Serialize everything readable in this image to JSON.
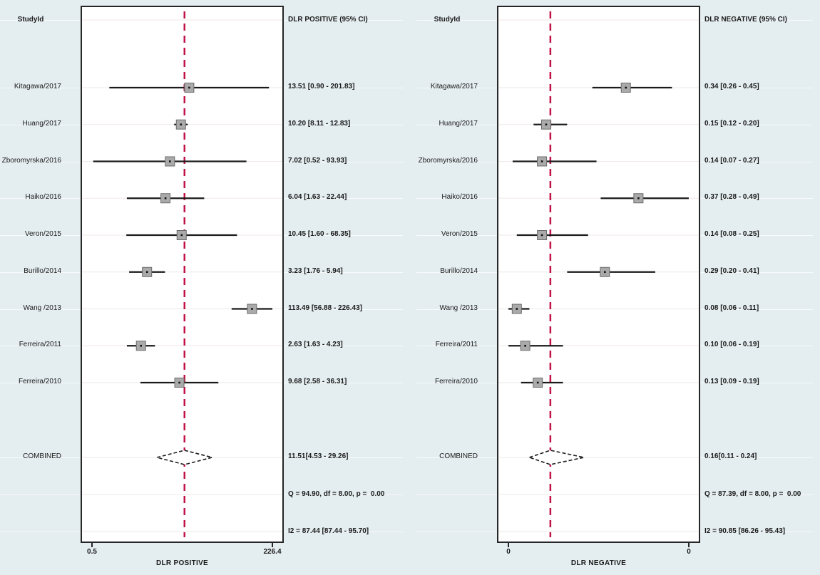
{
  "colors": {
    "background": "#e4edf0",
    "plot_background": "#ffffff",
    "plot_border": "#262626",
    "reference_line": "#c11347",
    "ci_line": "#1b1b1b",
    "marker_fill": "#aaaaaa",
    "marker_border": "#6b6b6b",
    "gridline": "#f0e7e7"
  },
  "chart_data": [
    {
      "type": "forest",
      "panel": "DLR POSITIVE",
      "study_header": "StudyId",
      "effect_header": "DLR POSITIVE (95% CI)",
      "xlabel": "DLR POSITIVE",
      "axis": {
        "scale": "log",
        "min": 0.5,
        "max": 226.4,
        "tick_labels": [
          "0.5",
          "226.4"
        ]
      },
      "studies": [
        {
          "label": "Kitagawa/2017",
          "value": 13.51,
          "ci_low": 0.9,
          "ci_high": 201.83,
          "text": "13.51 [0.90 - 201.83]"
        },
        {
          "label": "Huang/2017",
          "value": 10.2,
          "ci_low": 8.11,
          "ci_high": 12.83,
          "text": "10.20 [8.11 - 12.83]"
        },
        {
          "label": "Zboromyrska/2016",
          "value": 7.02,
          "ci_low": 0.52,
          "ci_high": 93.93,
          "text": "7.02 [0.52 - 93.93]"
        },
        {
          "label": "Haiko/2016",
          "value": 6.04,
          "ci_low": 1.63,
          "ci_high": 22.44,
          "text": "6.04 [1.63 - 22.44]"
        },
        {
          "label": "Veron/2015",
          "value": 10.45,
          "ci_low": 1.6,
          "ci_high": 68.35,
          "text": "10.45 [1.60 - 68.35]"
        },
        {
          "label": "Burillo/2014",
          "value": 3.23,
          "ci_low": 1.76,
          "ci_high": 5.94,
          "text": "3.23 [1.76 - 5.94]"
        },
        {
          "label": "Wang /2013",
          "value": 113.49,
          "ci_low": 56.88,
          "ci_high": 226.43,
          "text": "113.49 [56.88 - 226.43]"
        },
        {
          "label": "Ferreira/2011",
          "value": 2.63,
          "ci_low": 1.63,
          "ci_high": 4.23,
          "text": "2.63 [1.63 - 4.23]"
        },
        {
          "label": "Ferreira/2010",
          "value": 9.68,
          "ci_low": 2.58,
          "ci_high": 36.31,
          "text": "9.68 [2.58 - 36.31]"
        }
      ],
      "combined": {
        "label": "COMBINED",
        "value": 11.51,
        "ci_low": 4.53,
        "ci_high": 29.26,
        "text": "11.51[4.53 - 29.26]"
      },
      "q_text": "Q = 94.90, df = 8.00, p =  0.00",
      "i2_text": "I2 = 87.44 [87.44 - 95.70]"
    },
    {
      "type": "forest",
      "panel": "DLR NEGATIVE",
      "study_header": "StudyId",
      "effect_header": "DLR NEGATIVE (95% CI)",
      "xlabel": "DLR NEGATIVE",
      "axis": {
        "scale": "linear",
        "min": 0.06,
        "max": 0.49,
        "tick_labels": [
          "0",
          "0"
        ]
      },
      "studies": [
        {
          "label": "Kitagawa/2017",
          "value": 0.34,
          "ci_low": 0.26,
          "ci_high": 0.45,
          "text": "0.34 [0.26 - 0.45]"
        },
        {
          "label": "Huang/2017",
          "value": 0.15,
          "ci_low": 0.12,
          "ci_high": 0.2,
          "text": "0.15 [0.12 - 0.20]"
        },
        {
          "label": "Zboromyrska/2016",
          "value": 0.14,
          "ci_low": 0.07,
          "ci_high": 0.27,
          "text": "0.14 [0.07 - 0.27]"
        },
        {
          "label": "Haiko/2016",
          "value": 0.37,
          "ci_low": 0.28,
          "ci_high": 0.49,
          "text": "0.37 [0.28 - 0.49]"
        },
        {
          "label": "Veron/2015",
          "value": 0.14,
          "ci_low": 0.08,
          "ci_high": 0.25,
          "text": "0.14 [0.08 - 0.25]"
        },
        {
          "label": "Burillo/2014",
          "value": 0.29,
          "ci_low": 0.2,
          "ci_high": 0.41,
          "text": "0.29 [0.20 - 0.41]"
        },
        {
          "label": "Wang /2013",
          "value": 0.08,
          "ci_low": 0.06,
          "ci_high": 0.11,
          "text": "0.08 [0.06 - 0.11]"
        },
        {
          "label": "Ferreira/2011",
          "value": 0.1,
          "ci_low": 0.06,
          "ci_high": 0.19,
          "text": "0.10 [0.06 - 0.19]"
        },
        {
          "label": "Ferreira/2010",
          "value": 0.13,
          "ci_low": 0.09,
          "ci_high": 0.19,
          "text": "0.13 [0.09 - 0.19]"
        }
      ],
      "combined": {
        "label": "COMBINED",
        "value": 0.16,
        "ci_low": 0.11,
        "ci_high": 0.24,
        "text": "0.16[0.11 - 0.24]"
      },
      "q_text": "Q = 87.39, df = 8.00, p =  0.00",
      "i2_text": "I2 = 90.85 [86.26 - 95.43]"
    }
  ]
}
